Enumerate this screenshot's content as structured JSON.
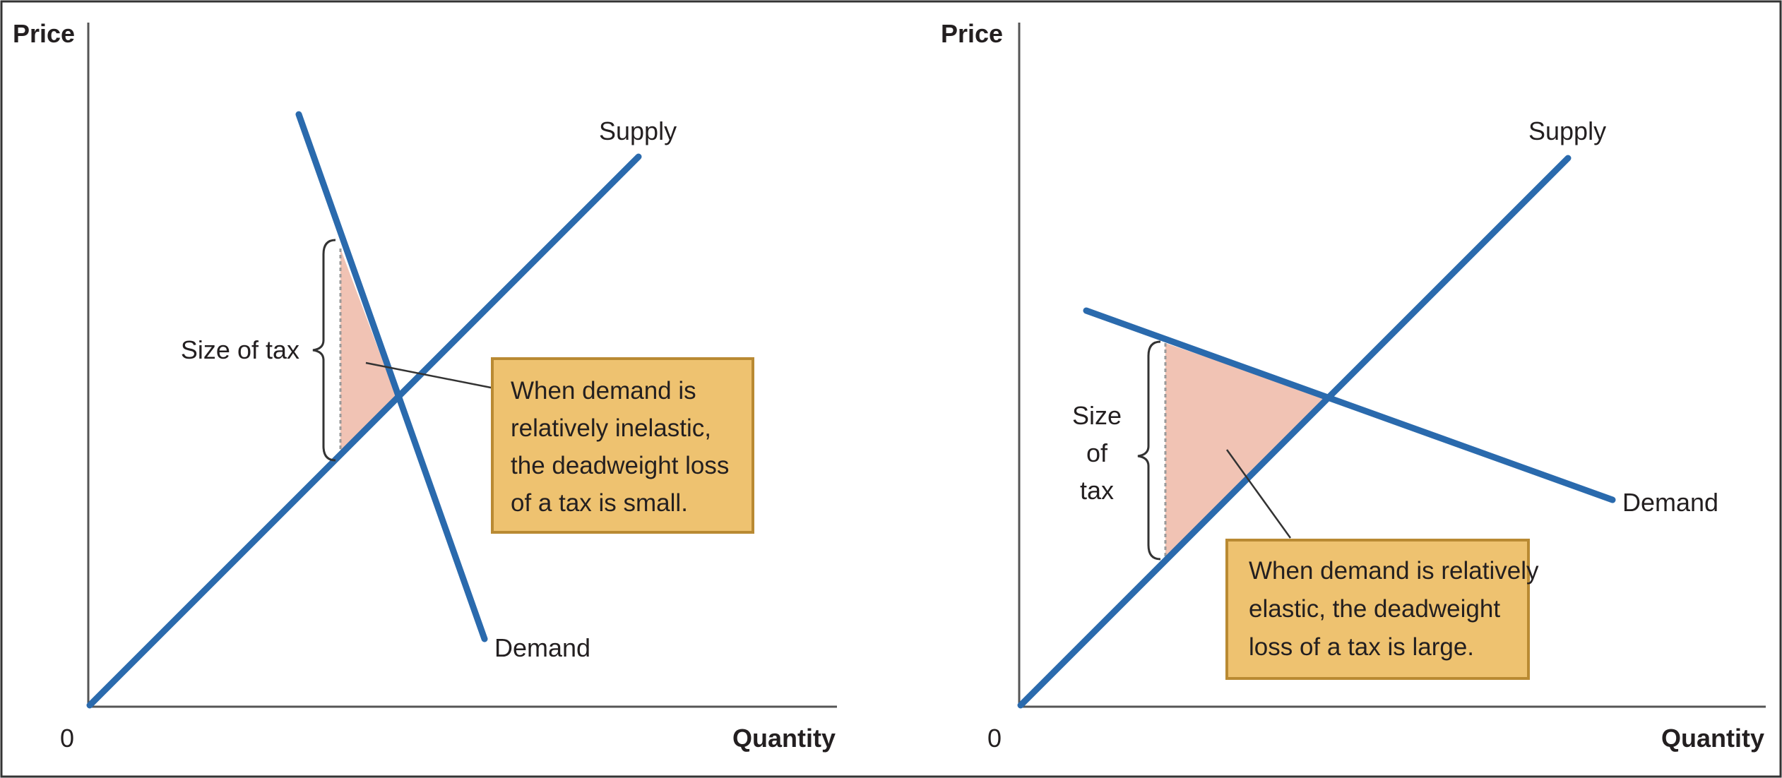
{
  "colors": {
    "curve": "#2a6aad",
    "deadweight_fill": "#f1c3b4",
    "callout_fill": "#eec270",
    "callout_border": "#b98a33",
    "frame": "#333333",
    "axis": "#555555"
  },
  "panels": [
    {
      "y_axis_label": "Price",
      "x_axis_label": "Quantity",
      "origin_label": "0",
      "supply_label": "Supply",
      "demand_label": "Demand",
      "tax_label": [
        "Size of tax"
      ],
      "callout": [
        "When demand is",
        "relatively inelastic,",
        "the deadweight loss",
        "of a tax is small."
      ]
    },
    {
      "y_axis_label": "Price",
      "x_axis_label": "Quantity",
      "origin_label": "0",
      "supply_label": "Supply",
      "demand_label": "Demand",
      "tax_label": [
        "Size",
        "of",
        "tax"
      ],
      "callout": [
        "When demand is relatively",
        "elastic, the deadweight",
        "loss of a tax is large."
      ]
    }
  ]
}
